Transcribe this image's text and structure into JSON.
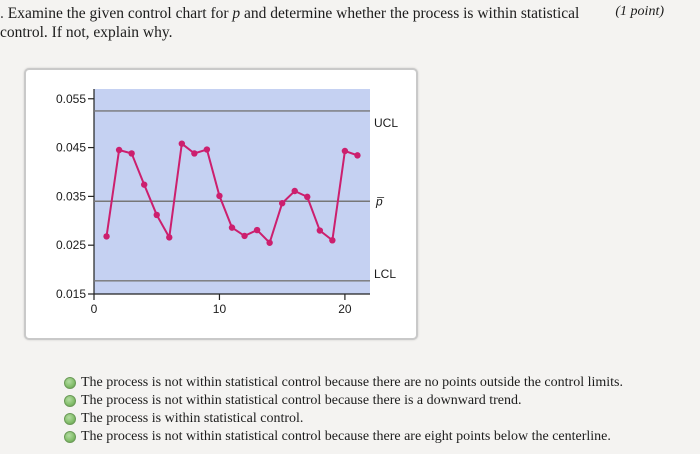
{
  "question": {
    "number": ".",
    "text_before": "Examine the given control chart for ",
    "variable": "p",
    "text_after": " and determine whether the process is within statistical control. If not, explain why.",
    "points": "(1 point)"
  },
  "chart_data": {
    "type": "line",
    "title": "",
    "xlabel": "",
    "ylabel": "",
    "xlim": [
      0,
      22
    ],
    "ylim": [
      0.015,
      0.057
    ],
    "x_ticks": [
      0,
      10,
      20
    ],
    "x_tick_labels": [
      "0",
      "10",
      "20"
    ],
    "y_ticks": [
      0.015,
      0.025,
      0.035,
      0.045,
      0.055
    ],
    "y_tick_labels": [
      "0.015",
      "0.025",
      "0.035",
      "0.045",
      "0.055"
    ],
    "x": [
      1,
      2,
      3,
      4,
      5,
      6,
      7,
      8,
      9,
      10,
      11,
      12,
      13,
      14,
      15,
      16,
      17,
      18,
      19,
      20,
      21
    ],
    "values": [
      0.0268,
      0.0445,
      0.0438,
      0.0374,
      0.0312,
      0.0266,
      0.0458,
      0.0438,
      0.0446,
      0.0351,
      0.0286,
      0.0269,
      0.0281,
      0.0255,
      0.0336,
      0.0361,
      0.0349,
      0.028,
      0.026,
      0.0443,
      0.0434
    ],
    "control_lines": {
      "UCL": 0.0525,
      "p_bar": 0.034,
      "LCL": 0.0177
    },
    "line_labels": {
      "ucl": "UCL",
      "center": "p̅",
      "lcl": "LCL"
    },
    "grid": false,
    "colors": {
      "plot_background": "#c5d1f2",
      "control_line": "#777777",
      "series": "#cc1f6e"
    }
  },
  "choices": [
    "The process is not within statistical control because there are no points outside the control limits.",
    "The process is not within statistical control because there is a downward trend.",
    "The process is within statistical control.",
    "The process is not within statistical control because there are eight points below the centerline."
  ]
}
